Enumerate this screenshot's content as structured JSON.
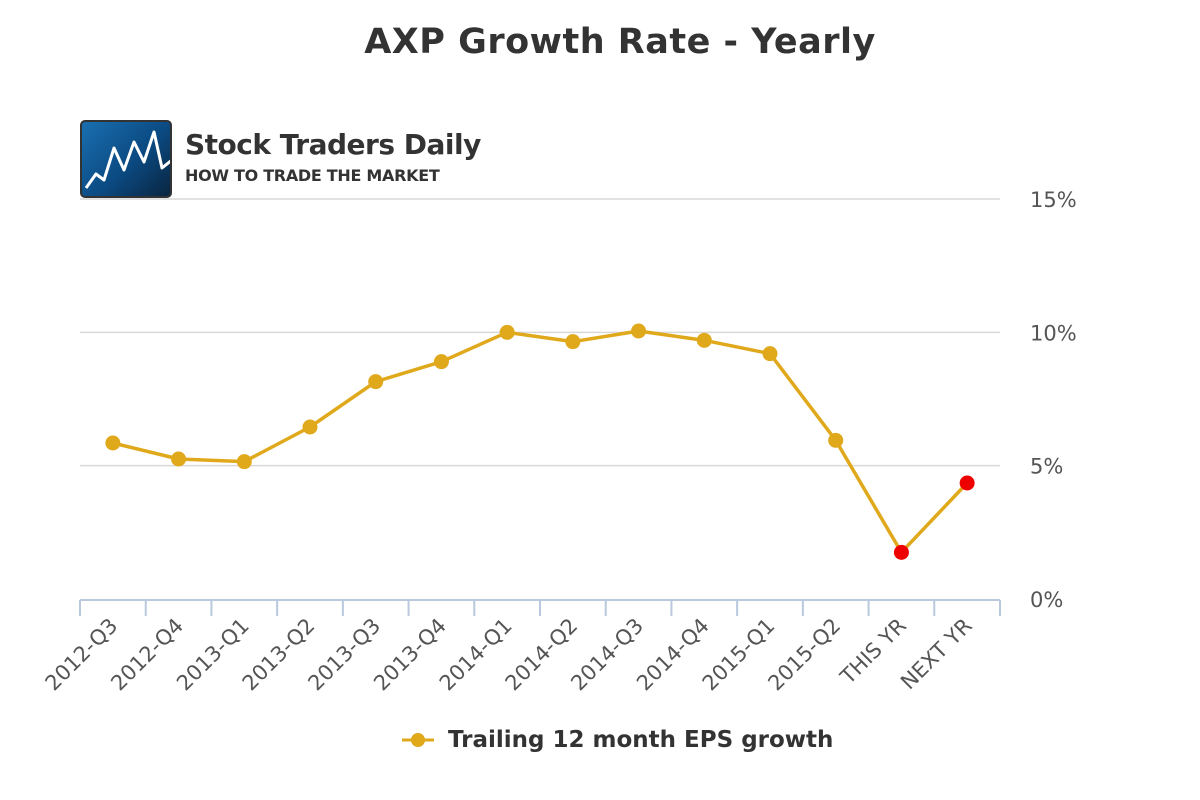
{
  "title": "AXP Growth Rate - Yearly",
  "logo": {
    "name": "Stock Traders Daily",
    "tagline": "HOW TO TRADE THE MARKET"
  },
  "chart_data": {
    "type": "line",
    "title": "AXP Growth Rate - Yearly",
    "categories": [
      "2012-Q3",
      "2012-Q4",
      "2013-Q1",
      "2013-Q2",
      "2013-Q3",
      "2013-Q4",
      "2014-Q1",
      "2014-Q2",
      "2014-Q3",
      "2014-Q4",
      "2015-Q1",
      "2015-Q2",
      "THIS YR",
      "NEXT YR"
    ],
    "series": [
      {
        "name": "Trailing 12 month EPS growth",
        "values": [
          5.85,
          5.25,
          5.15,
          6.45,
          8.15,
          8.9,
          10.0,
          9.65,
          10.05,
          9.7,
          9.2,
          5.95,
          1.75,
          4.35
        ],
        "color": "#e0a91c",
        "highlight_color": "#ee0000",
        "highlight_categories": [
          "THIS YR",
          "NEXT YR"
        ]
      }
    ],
    "yticks": [
      "0%",
      "5%",
      "10%",
      "15%"
    ],
    "ylim": [
      0,
      15
    ],
    "y_axis_side": "right",
    "grid": true,
    "legend_position": "bottom-center"
  }
}
